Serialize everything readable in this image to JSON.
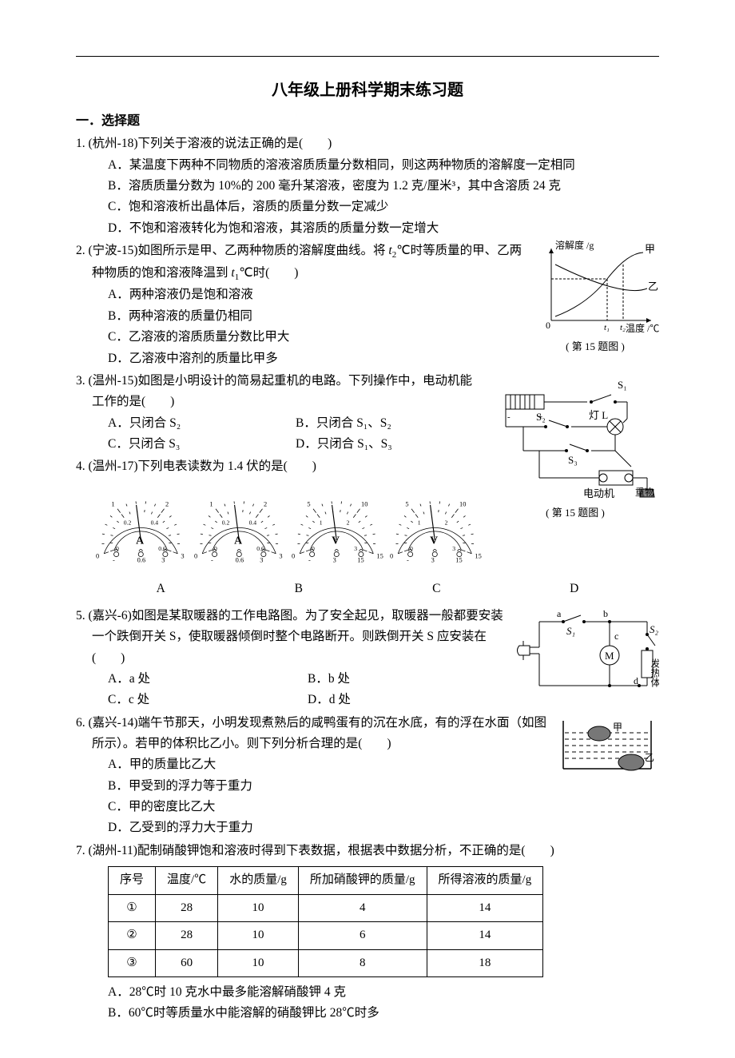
{
  "title": "八年级上册科学期末练习题",
  "section": "一．选择题",
  "questions": {
    "q1": {
      "num": "1. ",
      "stem": "(杭州-18)下列关于溶液的说法正确的是(　　)",
      "A": "A．某温度下两种不同物质的溶液溶质质量分数相同，则这两种物质的溶解度一定相同",
      "B": "B．溶质质量分数为 10%的 200 毫升某溶液，密度为 1.2 克/厘米³，其中含溶质 24 克",
      "C": "C．饱和溶液析出晶体后，溶质的质量分数一定减少",
      "D": "D．不饱和溶液转化为饱和溶液，其溶质的质量分数一定增大"
    },
    "q2": {
      "num": "2. ",
      "stem1": "(宁波-15)如图所示是甲、乙两种物质的溶解度曲线。将 ",
      "stem2": "℃时等质量的甲、乙两种物质的饱和溶液降温到 ",
      "stem3": "℃时(　　)",
      "A": "A．两种溶液仍是饱和溶液",
      "B": "B．两种溶液的质量仍相同",
      "C": "C．乙溶液的溶质质量分数比甲大",
      "D": "D．乙溶液中溶剂的质量比甲多",
      "fig_y": "溶解度 /g",
      "fig_x": "温度 /℃",
      "fig_a": "甲",
      "fig_b": "乙",
      "fig_t1": "t₁",
      "fig_t2": "t₂",
      "fig_caption": "( 第 15 题图 )"
    },
    "q3": {
      "num": "3. ",
      "stem": "(温州-15)如图是小明设计的简易起重机的电路。下列操作中，电动机能工作的是(　　)",
      "A": "A．只闭合 S₂",
      "B": "B．只闭合 S₁、S₂",
      "C": "C．只闭合 S₃",
      "D": "D．只闭合 S₁、S₃",
      "fig_s1": "S₁",
      "fig_s2": "S₂",
      "fig_s3": "S₃",
      "fig_lamp": "灯 L",
      "fig_motor": "电动机",
      "fig_weight": "重物",
      "fig_caption": "( 第 15 题图 )"
    },
    "q4": {
      "num": "4. ",
      "stem": "(温州-17)下列电表读数为 1.4 伏的是(　　)",
      "labelA": "A",
      "labelB": "B",
      "labelC": "C",
      "labelD": "D",
      "meterA": {
        "marks": [
          "0",
          "1",
          "2",
          "3",
          "0",
          "0.2",
          "0.4",
          "0.6"
        ],
        "unit": "A",
        "sw": [
          "-",
          "0.6",
          "3"
        ],
        "color": "#000"
      },
      "meterB": {
        "marks": [
          "0",
          "1",
          "2",
          "3",
          "0",
          "0.2",
          "0.4",
          "0.6"
        ],
        "unit": "A",
        "sw": [
          "-",
          "0.6",
          "3"
        ],
        "color": "#000"
      },
      "meterC": {
        "marks": [
          "0",
          "5",
          "10",
          "15",
          "0",
          "1",
          "2",
          "3"
        ],
        "unit": "V",
        "sw": [
          "-",
          "3",
          "15"
        ],
        "color": "#000"
      },
      "meterD": {
        "marks": [
          "0",
          "5",
          "10",
          "15",
          "0",
          "1",
          "2",
          "3"
        ],
        "unit": "V",
        "sw": [
          "-",
          "3",
          "15"
        ],
        "color": "#000"
      }
    },
    "q5": {
      "num": "5. ",
      "stem": "(嘉兴-6)如图是某取暖器的工作电路图。为了安全起见，取暖器一般都要安装一个跌倒开关 S，使取暖器倾倒时整个电路断开。则跌倒开关 S 应安装在(　　)",
      "A": "A．a 处",
      "B": "B．b 处",
      "C": "C．c 处",
      "D": "D．d 处",
      "fig_a": "a",
      "fig_b": "b",
      "fig_c": "c",
      "fig_d": "d",
      "fig_s1": "S₁",
      "fig_s2": "S₂",
      "fig_m": "M",
      "fig_heat": "发热体"
    },
    "q6": {
      "num": "6. ",
      "stem": "(嘉兴-14)端午节那天，小明发现煮熟后的咸鸭蛋有的沉在水底，有的浮在水面（如图所示）。若甲的体积比乙小。则下列分析合理的是(　　)",
      "A": "A．甲的质量比乙大",
      "B": "B．甲受到的浮力等于重力",
      "C": "C．甲的密度比乙大",
      "D": "D．乙受到的浮力大于重力",
      "fig_jia": "甲",
      "fig_yi": "乙"
    },
    "q7": {
      "num": "7. ",
      "stem": "(湖州-11)配制硝酸钾饱和溶液时得到下表数据，根据表中数据分析，不正确的是(　　)",
      "headers": [
        "序号",
        "温度/℃",
        "水的质量/g",
        "所加硝酸钾的质量/g",
        "所得溶液的质量/g"
      ],
      "rows": [
        [
          "①",
          "28",
          "10",
          "4",
          "14"
        ],
        [
          "②",
          "28",
          "10",
          "6",
          "14"
        ],
        [
          "③",
          "60",
          "10",
          "8",
          "18"
        ]
      ],
      "A": "A．28℃时 10 克水中最多能溶解硝酸钾 4 克",
      "B": "B．60℃时等质量水中能溶解的硝酸钾比 28℃时多"
    }
  }
}
